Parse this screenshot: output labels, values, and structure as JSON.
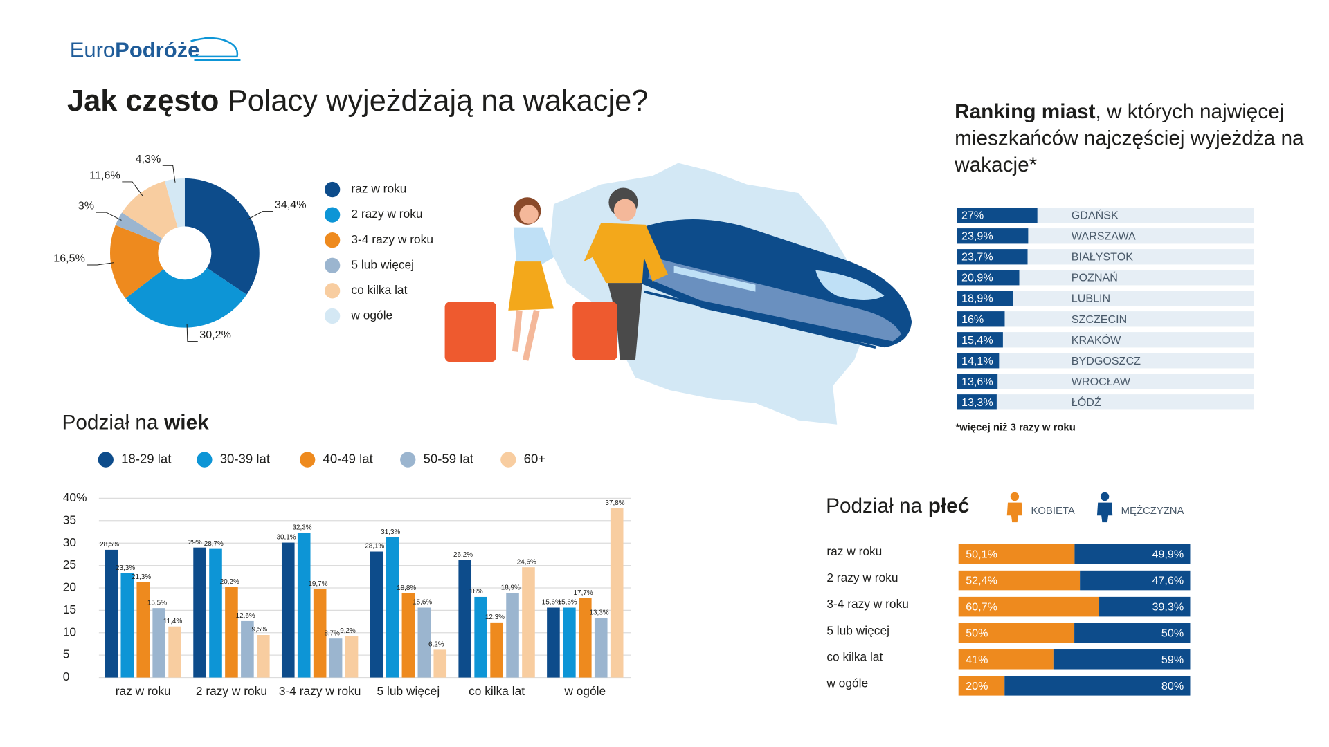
{
  "header": {
    "logo_light": "Euro",
    "logo_bold": "Podróże",
    "title_bold": "Jak często",
    "title": "Polacy wyjeżdżają na wakacje?"
  },
  "chart_data": [
    {
      "type": "pie",
      "donut": true,
      "categories": [
        "raz w roku",
        "2 razy w roku",
        "3-4 razy w roku",
        "5 lub więcej",
        "co kilka lat",
        "w ogóle"
      ],
      "values": [
        34.4,
        30.2,
        16.5,
        3,
        11.6,
        4.3
      ],
      "value_labels": [
        "34,4%",
        "30,2%",
        "16,5%",
        "3%",
        "11,6%",
        "4,3%"
      ],
      "colors": [
        "#0d4c8b",
        "#0d95d6",
        "#ee8a1e",
        "#9bb5cf",
        "#f8cda0",
        "#d4e8f4"
      ]
    },
    {
      "type": "bar",
      "title": "Podział na",
      "title_emphasis": "wiek",
      "categories": [
        "raz w roku",
        "2 razy w roku",
        "3-4 razy w roku",
        "5 lub więcej",
        "co kilka lat",
        "w ogóle"
      ],
      "series": [
        {
          "name": "18-29 lat",
          "color": "#0d4c8b",
          "values": [
            28.5,
            29,
            30.1,
            28.1,
            26.2,
            15.6
          ],
          "value_labels": [
            "28,5%",
            "29%",
            "30,1%",
            "28,1%",
            "26,2%",
            "15,6%"
          ]
        },
        {
          "name": "30-39 lat",
          "color": "#0d95d6",
          "values": [
            23.3,
            28.7,
            32.3,
            31.3,
            18,
            15.6
          ],
          "value_labels": [
            "23,3%",
            "28,7%",
            "32,3%",
            "31,3%",
            "18%",
            "15,6%"
          ]
        },
        {
          "name": "40-49 lat",
          "color": "#ee8a1e",
          "values": [
            21.3,
            20.2,
            19.7,
            18.8,
            12.3,
            17.7
          ],
          "value_labels": [
            "21,3%",
            "20,2%",
            "19,7%",
            "18,8%",
            "12,3%",
            "17,7%"
          ]
        },
        {
          "name": "50-59 lat",
          "color": "#9bb5cf",
          "values": [
            15.5,
            12.6,
            8.7,
            15.6,
            18.9,
            13.3
          ],
          "value_labels": [
            "15,5%",
            "12,6%",
            "8,7%",
            "15,6%",
            "18,9%",
            "13,3%"
          ]
        },
        {
          "name": "60+",
          "color": "#f8cda0",
          "values": [
            11.4,
            9.5,
            9.2,
            6.2,
            24.6,
            37.8
          ],
          "value_labels": [
            "11,4%",
            "9,5%",
            "9,2%",
            "6,2%",
            "24,6%",
            "37,8%"
          ]
        }
      ],
      "ylim": [
        0,
        40
      ],
      "yticks": [
        0,
        5,
        10,
        15,
        20,
        25,
        30,
        35,
        {
          "value": 40,
          "label": "40%"
        }
      ],
      "grid": true
    },
    {
      "type": "bar",
      "orientation": "horizontal",
      "title_emphasis": "Ranking miast",
      "title": ", w których najwięcej mieszkańców najczęściej wyjeżdża na wakacje*",
      "note": "*więcej niż 3 razy w roku",
      "categories": [
        "GDAŃSK",
        "WARSZAWA",
        "BIAŁYSTOK",
        "POZNAŃ",
        "LUBLIN",
        "SZCZECIN",
        "KRAKÓW",
        "BYDGOSZCZ",
        "WROCŁAW",
        "ŁÓDŹ"
      ],
      "values": [
        27,
        23.9,
        23.7,
        20.9,
        18.9,
        16,
        15.4,
        14.1,
        13.6,
        13.3
      ],
      "value_labels": [
        "27%",
        "23,9%",
        "23,7%",
        "20,9%",
        "18,9%",
        "16%",
        "15,4%",
        "14,1%",
        "13,6%",
        "13,3%"
      ],
      "color": "#0d4c8b",
      "xlim": [
        0,
        100
      ]
    },
    {
      "type": "stacked_bar",
      "orientation": "horizontal",
      "title": "Podział na",
      "title_emphasis": "płeć",
      "categories": [
        "raz w roku",
        "2 razy w roku",
        "3-4 razy w roku",
        "5 lub więcej",
        "co kilka lat",
        "w ogóle"
      ],
      "series": [
        {
          "name": "KOBIETA",
          "color": "#ee8a1e",
          "values": [
            50.1,
            52.4,
            60.7,
            50,
            41,
            20
          ],
          "value_labels": [
            "50,1%",
            "52,4%",
            "60,7%",
            "50%",
            "41%",
            "20%"
          ]
        },
        {
          "name": "MĘŻCZYZNA",
          "color": "#0d4c8b",
          "values": [
            49.9,
            47.6,
            39.3,
            50,
            59,
            80
          ],
          "value_labels": [
            "49,9%",
            "47,6%",
            "39,3%",
            "50%",
            "59%",
            "80%"
          ]
        }
      ],
      "xlim": [
        0,
        100
      ]
    }
  ]
}
